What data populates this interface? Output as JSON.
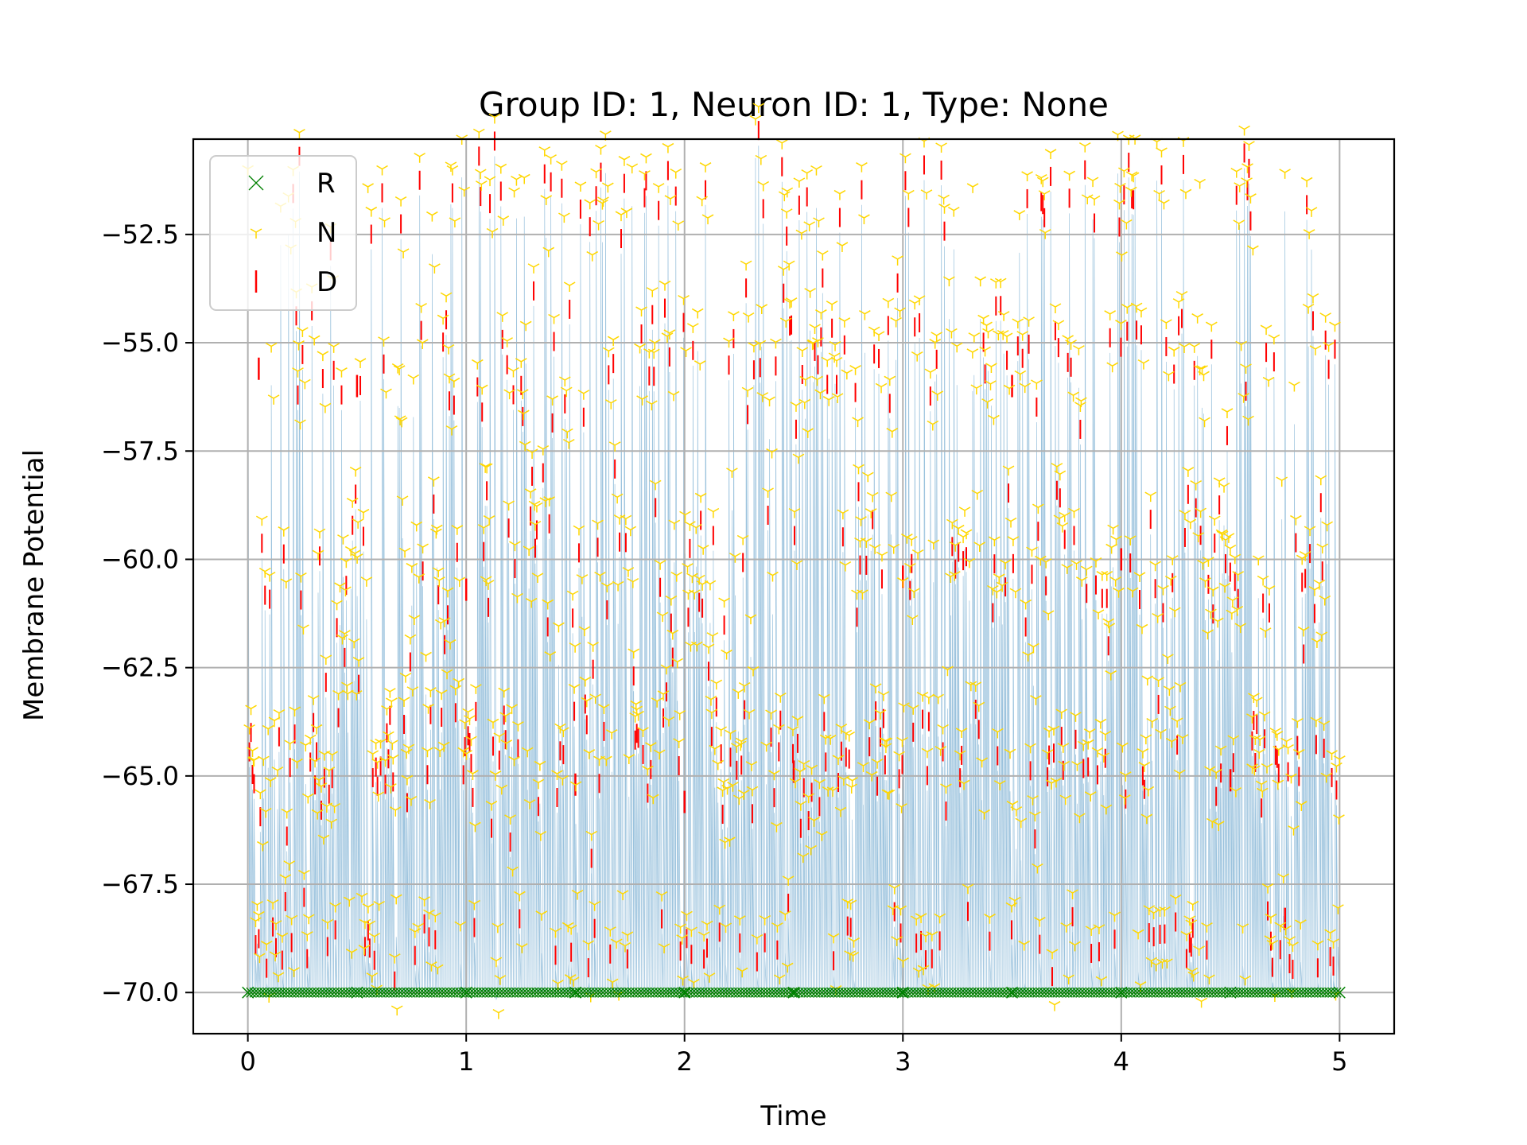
{
  "chart_data": {
    "type": "scatter",
    "title": "Group ID: 1, Neuron ID: 1, Type: None",
    "xlabel": "Time",
    "ylabel": "Membrane Potential",
    "xlim": [
      -0.25,
      5.25
    ],
    "ylim": [
      -70.95,
      -50.3
    ],
    "x_ticks": [
      0,
      1,
      2,
      3,
      4,
      5
    ],
    "x_tick_labels": [
      "0",
      "1",
      "2",
      "3",
      "4",
      "5"
    ],
    "y_ticks": [
      -70.0,
      -67.5,
      -65.0,
      -62.5,
      -60.0,
      -57.5,
      -55.0,
      -52.5
    ],
    "y_tick_labels": [
      "−70.0",
      "−67.5",
      "−65.0",
      "−62.5",
      "−60.0",
      "−57.5",
      "−55.0",
      "−52.5"
    ],
    "grid": true,
    "legend_position": "top-left",
    "series": [
      {
        "name": "R",
        "marker": "x",
        "color": "#008000",
        "x": [
          0.0,
          0.5,
          1.0,
          1.5,
          2.0,
          2.5,
          3.0,
          3.5,
          4.0,
          4.5,
          5.0
        ],
        "y": [
          -70.0,
          -70.0,
          -70.0,
          -70.0,
          -70.0,
          -70.0,
          -70.0,
          -70.0,
          -70.0,
          -70.0,
          -70.0
        ]
      },
      {
        "name": "N",
        "marker": "tri_down",
        "color": "#FFD700",
        "x": [
          0.55,
          1.22,
          2.08,
          2.47,
          3.32,
          4.36,
          0.8,
          1.95,
          3.0,
          4.6
        ],
        "y": [
          -51.4,
          -51.5,
          -51.7,
          -51.5,
          -51.4,
          -51.3,
          -55.0,
          -56.2,
          -60.5,
          -64.8
        ]
      },
      {
        "name": "D",
        "marker": "vline",
        "color": "#FF0000",
        "x": [
          0.05,
          0.5,
          1.0,
          1.5,
          2.0,
          2.5,
          3.0,
          3.5,
          4.0,
          4.5,
          4.75
        ],
        "y": [
          -55.6,
          -56.0,
          -60.7,
          -65.2,
          -65.6,
          -64.9,
          -60.4,
          -56.0,
          -60.0,
          -65.1,
          -68.3
        ]
      }
    ],
    "trace_color": "#1f77b4"
  }
}
